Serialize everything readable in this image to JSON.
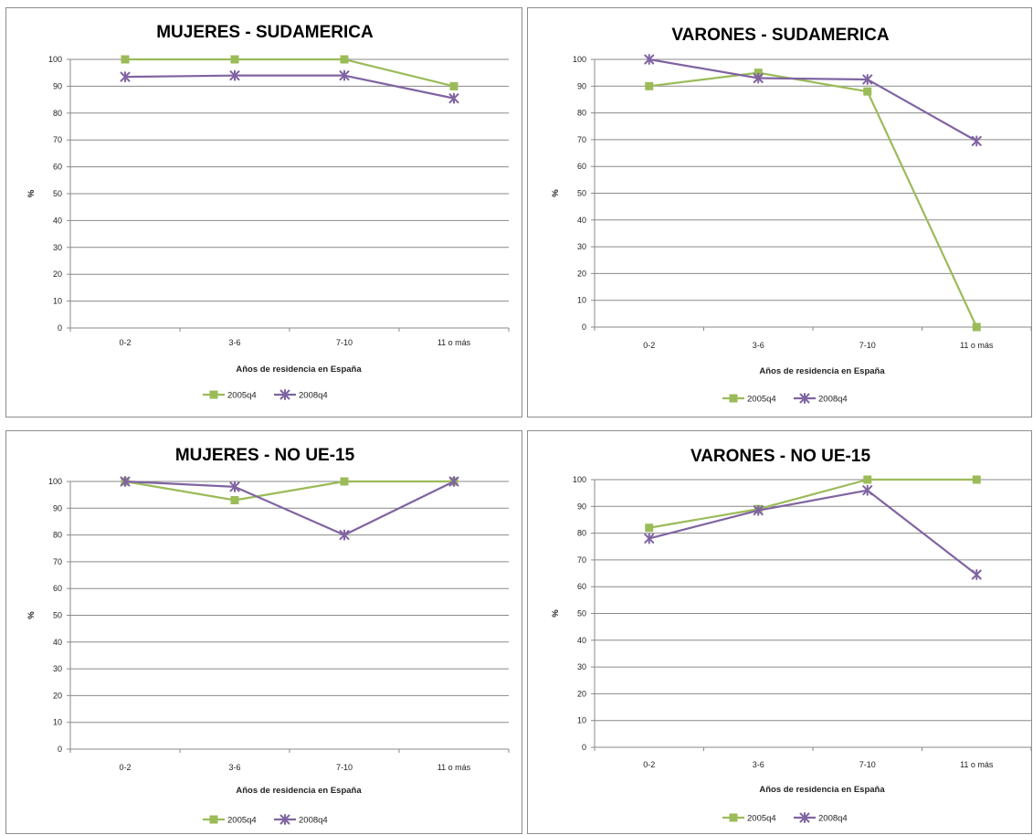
{
  "chart_data": [
    {
      "type": "line",
      "title": "MUJERES - SUDAMERICA",
      "xlabel": "Años de residencia en España",
      "ylabel": "%",
      "categories": [
        "0-2",
        "3-6",
        "7-10",
        "11 o más"
      ],
      "ylim": [
        0,
        100
      ],
      "yticks": [
        0,
        10,
        20,
        30,
        40,
        50,
        60,
        70,
        80,
        90,
        100
      ],
      "grid": true,
      "legend_position": "bottom",
      "series": [
        {
          "name": "2005q4",
          "values": [
            100,
            100,
            100,
            90
          ],
          "color": "#9bbb59",
          "marker": "square"
        },
        {
          "name": "2008q4",
          "values": [
            93.5,
            94,
            94,
            85.5
          ],
          "color": "#8064a2",
          "marker": "x"
        }
      ]
    },
    {
      "type": "line",
      "title": "VARONES - SUDAMERICA",
      "xlabel": "Años de residencia en España",
      "ylabel": "%",
      "categories": [
        "0-2",
        "3-6",
        "7-10",
        "11 o más"
      ],
      "ylim": [
        0,
        100
      ],
      "yticks": [
        0,
        10,
        20,
        30,
        40,
        50,
        60,
        70,
        80,
        90,
        100
      ],
      "grid": true,
      "legend_position": "bottom",
      "series": [
        {
          "name": "2005q4",
          "values": [
            90,
            95,
            88,
            0
          ],
          "color": "#9bbb59",
          "marker": "square"
        },
        {
          "name": "2008q4",
          "values": [
            100,
            93,
            92.5,
            69.5
          ],
          "color": "#8064a2",
          "marker": "x"
        }
      ]
    },
    {
      "type": "line",
      "title": "MUJERES - NO UE-15",
      "xlabel": "Años de residencia en España",
      "ylabel": "%",
      "categories": [
        "0-2",
        "3-6",
        "7-10",
        "11 o más"
      ],
      "ylim": [
        0,
        100
      ],
      "yticks": [
        0,
        10,
        20,
        30,
        40,
        50,
        60,
        70,
        80,
        90,
        100
      ],
      "grid": true,
      "legend_position": "bottom",
      "series": [
        {
          "name": "2005q4",
          "values": [
            100,
            93,
            100,
            100
          ],
          "color": "#9bbb59",
          "marker": "square"
        },
        {
          "name": "2008q4",
          "values": [
            100,
            98,
            80,
            100
          ],
          "color": "#8064a2",
          "marker": "x"
        }
      ]
    },
    {
      "type": "line",
      "title": "VARONES - NO UE-15",
      "xlabel": "Años de residencia en España",
      "ylabel": "%",
      "categories": [
        "0-2",
        "3-6",
        "7-10",
        "11 o más"
      ],
      "ylim": [
        0,
        100
      ],
      "yticks": [
        0,
        10,
        20,
        30,
        40,
        50,
        60,
        70,
        80,
        90,
        100
      ],
      "grid": true,
      "legend_position": "bottom",
      "series": [
        {
          "name": "2005q4",
          "values": [
            82,
            89,
            100,
            100
          ],
          "color": "#9bbb59",
          "marker": "square"
        },
        {
          "name": "2008q4",
          "values": [
            78,
            88.5,
            96,
            64.5
          ],
          "color": "#8064a2",
          "marker": "x"
        }
      ]
    }
  ]
}
